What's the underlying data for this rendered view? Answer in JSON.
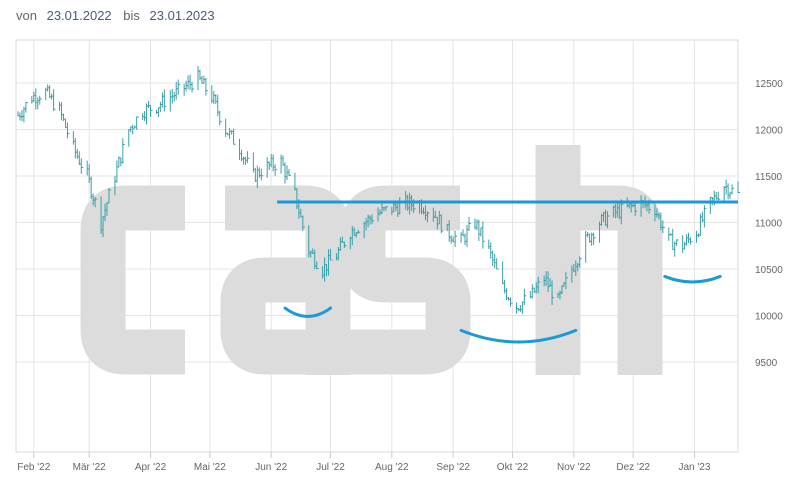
{
  "header": {
    "from_label": "von",
    "from_date": "23.01.2022",
    "to_label": "bis",
    "to_date": "23.01.2023"
  },
  "watermark": "cash",
  "colors": {
    "bars": "#3a9fa8",
    "annotation": "#1a9ad6",
    "grid": "#e4e4e4",
    "watermark": "#dcdcdc"
  },
  "chart_data": {
    "type": "ohlc",
    "start": "2022-01-23",
    "end": "2023-01-23",
    "ylim": [
      9000,
      12800
    ],
    "yticks": [
      9500,
      10000,
      10500,
      11000,
      11500,
      12000,
      12500
    ],
    "xticks": [
      {
        "date": "2022-02-01",
        "label": "Feb '22"
      },
      {
        "date": "2022-03-01",
        "label": "Mär '22"
      },
      {
        "date": "2022-04-01",
        "label": "Apr '22"
      },
      {
        "date": "2022-05-01",
        "label": "Mai '22"
      },
      {
        "date": "2022-06-01",
        "label": "Jun '22"
      },
      {
        "date": "2022-07-01",
        "label": "Jul '22"
      },
      {
        "date": "2022-08-01",
        "label": "Aug '22"
      },
      {
        "date": "2022-09-01",
        "label": "Sep '22"
      },
      {
        "date": "2022-10-01",
        "label": "Okt '22"
      },
      {
        "date": "2022-11-01",
        "label": "Nov '22"
      },
      {
        "date": "2022-12-01",
        "label": "Dez '22"
      },
      {
        "date": "2023-01-01",
        "label": "Jan '23"
      }
    ],
    "weekly_start": "2022-01-24",
    "weekly_close": [
      12150,
      12350,
      12400,
      12200,
      11800,
      11500,
      11000,
      11500,
      12000,
      12200,
      12250,
      12350,
      12450,
      12550,
      12350,
      12000,
      11800,
      11500,
      11600,
      11650,
      11300,
      10700,
      10500,
      10650,
      10900,
      11000,
      11100,
      11150,
      11200,
      11200,
      11100,
      10900,
      10800,
      11000,
      10700,
      10300,
      10100,
      10200,
      10400,
      10150,
      10500,
      10800,
      11000,
      11100,
      11150,
      11200,
      11150,
      10800,
      10750,
      10900,
      11200,
      11400,
      11300
    ],
    "annotations": [
      {
        "type": "hline",
        "value": 11220,
        "from": "2022-06-04",
        "to": "2023-01-23"
      },
      {
        "type": "arc",
        "from": "2022-06-08",
        "to": "2022-07-01",
        "value": 10080,
        "depth": 180
      },
      {
        "type": "arc",
        "from": "2022-09-05",
        "to": "2022-11-02",
        "value": 9840,
        "depth": 250
      },
      {
        "type": "arc",
        "from": "2022-12-17",
        "to": "2023-01-14",
        "value": 10420,
        "depth": 120
      }
    ]
  }
}
